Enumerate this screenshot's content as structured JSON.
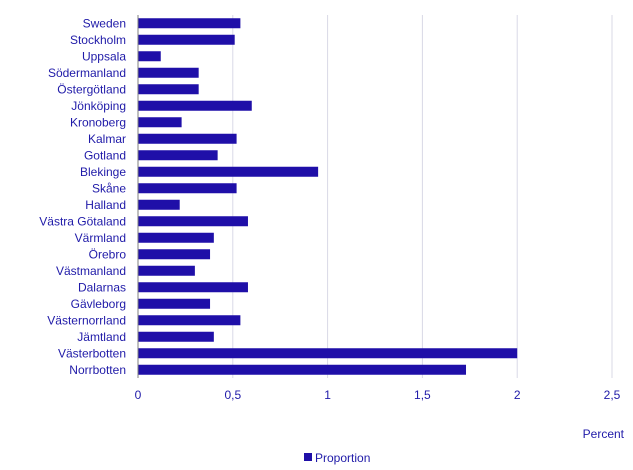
{
  "chart_data": {
    "type": "bar",
    "orientation": "horizontal",
    "categories": [
      "Sweden",
      "Stockholm",
      "Uppsala",
      "Södermanland",
      "Östergötland",
      "Jönköping",
      "Kronoberg",
      "Kalmar",
      "Gotland",
      "Blekinge",
      "Skåne",
      "Halland",
      "Västra Götaland",
      "Värmland",
      "Örebro",
      "Västmanland",
      "Dalarnas",
      "Gävleborg",
      "Västernorrland",
      "Jämtland",
      "Västerbotten",
      "Norrbotten"
    ],
    "series": [
      {
        "name": "Proportion",
        "values": [
          0.54,
          0.51,
          0.12,
          0.32,
          0.32,
          0.6,
          0.23,
          0.52,
          0.42,
          0.95,
          0.52,
          0.22,
          0.58,
          0.4,
          0.38,
          0.3,
          0.58,
          0.38,
          0.54,
          0.4,
          2.0,
          1.73
        ],
        "color": "#1f0fa8"
      }
    ],
    "xlim": [
      0,
      2.5
    ],
    "xticks": [
      0,
      0.5,
      1,
      1.5,
      2,
      2.5
    ],
    "xtick_labels": [
      "0",
      "0,5",
      "1",
      "1,5",
      "2",
      "2,5"
    ],
    "xlabel": "Percent",
    "grid": true,
    "legend_position": "bottom-center"
  }
}
